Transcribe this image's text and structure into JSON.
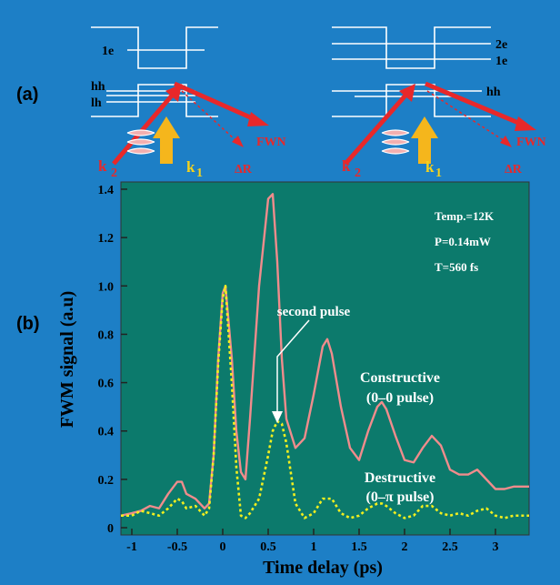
{
  "panel_labels": [
    "(a)",
    "(b)"
  ],
  "diagrams": [
    {
      "labels": [
        "1e",
        "hh",
        "lh",
        "k",
        "2",
        "k",
        "1",
        "FWN",
        "ΔR"
      ]
    },
    {
      "labels": [
        "2e",
        "1e",
        "hh",
        "k",
        "2",
        "k",
        "1",
        "FWN",
        "ΔR"
      ]
    }
  ],
  "chart_data": {
    "type": "line",
    "x_label": "Time delay (ps)",
    "y_label": "FWM signal (a.u)",
    "x": [
      -1.12,
      -1,
      -0.9,
      -0.8,
      -0.7,
      -0.6,
      -0.5,
      -0.45,
      -0.4,
      -0.3,
      -0.2,
      -0.15,
      -0.1,
      -0.05,
      0,
      0.03,
      0.1,
      0.15,
      0.2,
      0.25,
      0.3,
      0.4,
      0.5,
      0.55,
      0.6,
      0.65,
      0.7,
      0.8,
      0.9,
      1,
      1.1,
      1.15,
      1.2,
      1.3,
      1.4,
      1.5,
      1.6,
      1.7,
      1.75,
      1.8,
      1.9,
      2,
      2.1,
      2.2,
      2.3,
      2.4,
      2.5,
      2.6,
      2.7,
      2.8,
      2.9,
      3,
      3.1,
      3.2,
      3.37
    ],
    "series": [
      {
        "color": "#f08c8c",
        "style": "solid",
        "values": [
          0.05,
          0.06,
          0.07,
          0.09,
          0.08,
          0.14,
          0.19,
          0.19,
          0.14,
          0.12,
          0.08,
          0.1,
          0.3,
          0.7,
          0.97,
          1.0,
          0.7,
          0.4,
          0.23,
          0.2,
          0.45,
          1.0,
          1.36,
          1.38,
          1.1,
          0.7,
          0.45,
          0.33,
          0.37,
          0.55,
          0.75,
          0.78,
          0.72,
          0.5,
          0.33,
          0.28,
          0.4,
          0.5,
          0.52,
          0.49,
          0.38,
          0.28,
          0.27,
          0.33,
          0.38,
          0.34,
          0.24,
          0.22,
          0.22,
          0.24,
          0.2,
          0.16,
          0.16,
          0.17,
          0.17
        ]
      },
      {
        "color": "#f2ef1e",
        "style": "dotted",
        "values": [
          0.05,
          0.05,
          0.07,
          0.06,
          0.05,
          0.08,
          0.12,
          0.11,
          0.08,
          0.09,
          0.05,
          0.08,
          0.3,
          0.68,
          0.95,
          1.0,
          0.6,
          0.25,
          0.05,
          0.04,
          0.06,
          0.12,
          0.3,
          0.4,
          0.44,
          0.43,
          0.35,
          0.1,
          0.04,
          0.06,
          0.12,
          0.12,
          0.12,
          0.06,
          0.04,
          0.05,
          0.08,
          0.1,
          0.1,
          0.09,
          0.06,
          0.04,
          0.05,
          0.09,
          0.09,
          0.06,
          0.05,
          0.06,
          0.05,
          0.07,
          0.08,
          0.05,
          0.04,
          0.05,
          0.05
        ]
      }
    ],
    "annotations": [
      "Temp.=12K",
      "P=0.14mW",
      "T=560 fs",
      "second pulse",
      "Constructive",
      "(0–0 pulse)",
      "Destructive",
      "(0–π pulse)"
    ],
    "xlim": [
      -1.12,
      3.37
    ],
    "ylim": [
      -0.03,
      1.43
    ],
    "xticks": [
      -1,
      -0.5,
      0,
      0.5,
      1,
      1.5,
      2,
      2.5,
      3
    ],
    "yticks": [
      0,
      0.2,
      0.4,
      0.6,
      0.8,
      {
        "value": 1,
        "label": "1.0"
      },
      1.2,
      1.4
    ]
  }
}
